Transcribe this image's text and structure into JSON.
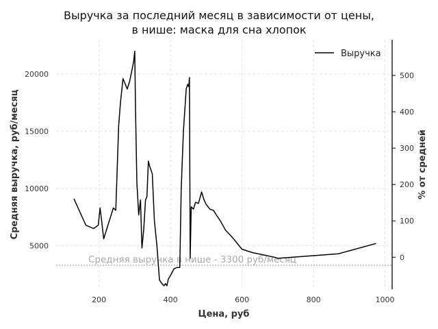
{
  "chart_data": {
    "type": "line",
    "title_line1": "Выручка за последний месяц в зависимости от цены,",
    "title_line2": "в нише: маска для сна хлопок",
    "xlabel": "Цена, руб",
    "ylabel": "Средняя выручка, руб/месяц",
    "y2label": "% от средней",
    "xlim": [
      80,
      1020
    ],
    "ylim": [
      1200,
      23000
    ],
    "y2lim": [
      -88,
      598
    ],
    "x_ticks": [
      200,
      400,
      600,
      800,
      1000
    ],
    "y_ticks": [
      5000,
      10000,
      15000,
      20000
    ],
    "y2_ticks": [
      0,
      100,
      200,
      300,
      400,
      500
    ],
    "grid": true,
    "legend": {
      "position": "top-right",
      "entries": [
        "Выручка"
      ]
    },
    "reference_line": {
      "y": 3300,
      "label": "Средняя выручка в нише - 3300 руб/месяц"
    },
    "series": [
      {
        "name": "Выручка",
        "color": "#000000",
        "x": [
          130,
          150,
          163,
          185,
          198,
          203,
          208,
          213,
          240,
          247,
          255,
          260,
          267,
          279,
          286,
          297,
          300,
          302,
          306,
          311,
          316,
          320,
          325,
          330,
          334,
          338,
          342,
          349,
          355,
          362,
          369,
          376,
          382,
          386,
          390,
          394,
          400,
          410,
          418,
          426,
          430,
          436,
          444,
          448,
          451,
          453,
          455,
          458,
          464,
          470,
          478,
          487,
          494,
          500,
          510,
          520,
          530,
          541,
          553,
          574,
          600,
          630,
          690,
          700,
          870,
          975
        ],
        "y": [
          9100,
          7700,
          6800,
          6500,
          6800,
          8300,
          7000,
          5600,
          8300,
          8100,
          15500,
          17500,
          19600,
          18700,
          19400,
          21100,
          22000,
          17000,
          10500,
          7700,
          9000,
          4800,
          6400,
          9000,
          9300,
          12400,
          11900,
          11300,
          7200,
          5000,
          2000,
          1700,
          1500,
          1700,
          1500,
          2100,
          2400,
          3000,
          3100,
          3100,
          10000,
          15000,
          18700,
          19100,
          18900,
          19700,
          3900,
          8400,
          8200,
          8800,
          8700,
          9700,
          9000,
          8600,
          8200,
          8100,
          7600,
          7100,
          6400,
          5700,
          4700,
          4400,
          4000,
          3900,
          4300,
          5200
        ]
      }
    ]
  }
}
